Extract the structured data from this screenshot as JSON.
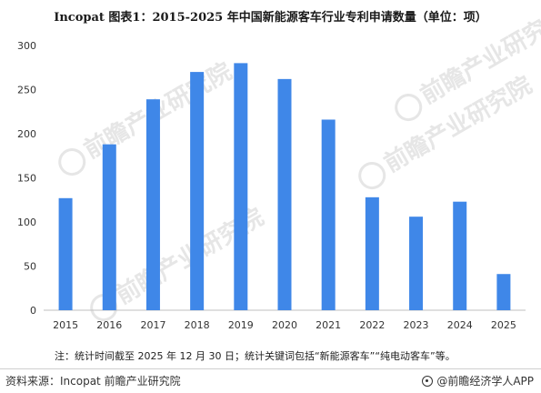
{
  "title": "Incopat  图表1：2015-2025 年中国新能源客车行业专利申请数量（单位：项）",
  "note": "注：统计时间截至 2025 年 12 月 30 日；统计关键词包括“新能源客车”“纯电动客车”等。",
  "source": "资料来源：Incopat 前瞻产业研究院",
  "app_label": "@前瞻经济学人APP",
  "watermark": "前瞻产业研究院",
  "colors": {
    "bar": "#3f87e8",
    "axis": "#bfbfbf"
  },
  "chart_data": {
    "type": "bar",
    "title": "Incopat  图表1：2015-2025 年中国新能源客车行业专利申请数量（单位：项）",
    "categories": [
      "2015",
      "2016",
      "2017",
      "2018",
      "2019",
      "2020",
      "2021",
      "2022",
      "2023",
      "2024",
      "2025"
    ],
    "values": [
      127,
      188,
      239,
      270,
      280,
      262,
      216,
      128,
      106,
      123,
      41
    ],
    "ylim": [
      0,
      300
    ],
    "yticks": [
      0,
      50,
      100,
      150,
      200,
      250,
      300
    ],
    "xlabel": "",
    "ylabel": "",
    "grid": false
  }
}
